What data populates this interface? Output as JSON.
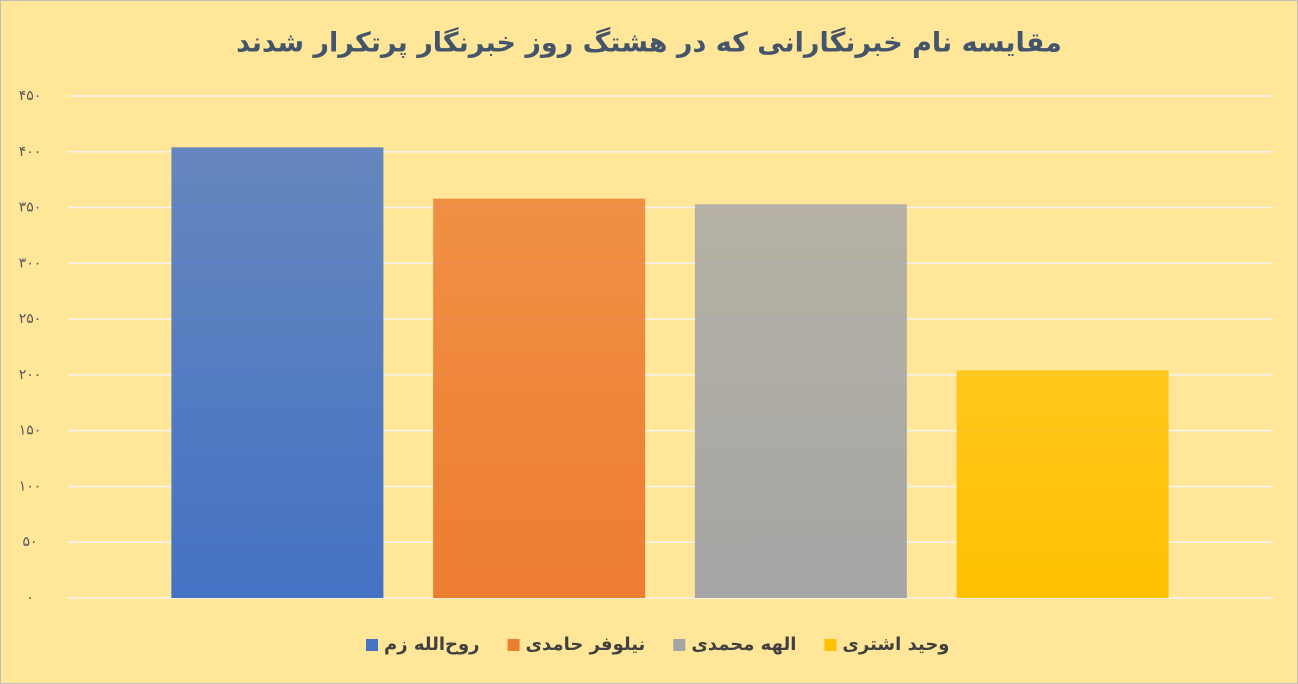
{
  "chart_data": {
    "type": "bar",
    "title": "مقایسه نام خبرنگارانی که در هشتگ روز خبرنگار پرتکرار شدند",
    "categories": [
      null
    ],
    "series": [
      {
        "name": "روح‌الله زم",
        "color": "#4472c4",
        "values": [
          404
        ]
      },
      {
        "name": "نیلوفر حامدی",
        "color": "#ed7d31",
        "values": [
          358
        ]
      },
      {
        "name": "الهه محمدی",
        "color": "#a5a5a5",
        "values": [
          353
        ]
      },
      {
        "name": "وحید اشتری",
        "color": "#ffc000",
        "values": [
          204
        ]
      }
    ],
    "ylim": [
      0,
      450
    ],
    "yticks": [
      {
        "value": 0,
        "label": "۰"
      },
      {
        "value": 50,
        "label": "۵۰"
      },
      {
        "value": 100,
        "label": "۱۰۰"
      },
      {
        "value": 150,
        "label": "۱۵۰"
      },
      {
        "value": 200,
        "label": "۲۰۰"
      },
      {
        "value": 250,
        "label": "۲۵۰"
      },
      {
        "value": 300,
        "label": "۳۰۰"
      },
      {
        "value": 350,
        "label": "۳۵۰"
      },
      {
        "value": 400,
        "label": "۴۰۰"
      },
      {
        "value": 450,
        "label": "۴۵۰"
      }
    ],
    "grid": true,
    "legend": "bottom"
  }
}
